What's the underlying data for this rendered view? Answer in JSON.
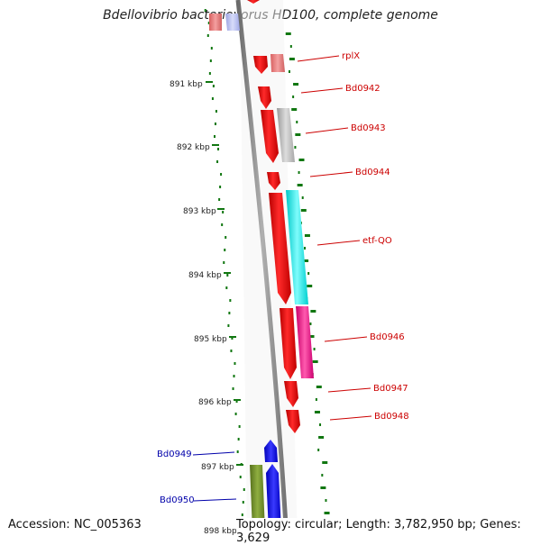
{
  "title": "Bdellovibrio bacteriovorus HD100, complete genome",
  "accession": "Accession: NC_005363",
  "topology": "Topology: circular; Length: 3,782,950 bp; Genes: 3,629",
  "ticks": [
    "891 kbp",
    "892 kbp",
    "893 kbp",
    "894 kbp",
    "895 kbp",
    "896 kbp",
    "897 kbp",
    "898 kbp"
  ],
  "genes_right": [
    {
      "name": "rplX",
      "color": "#cc0000"
    },
    {
      "name": "Bd0942",
      "color": "#cc0000"
    },
    {
      "name": "Bd0943",
      "color": "#cc0000"
    },
    {
      "name": "Bd0944",
      "color": "#cc0000"
    },
    {
      "name": "etf-QO",
      "color": "#cc0000"
    },
    {
      "name": "Bd0946",
      "color": "#cc0000"
    },
    {
      "name": "Bd0947",
      "color": "#cc0000"
    },
    {
      "name": "Bd0948",
      "color": "#cc0000"
    }
  ],
  "genes_left": [
    {
      "name": "Bd0949",
      "color": "#0000aa"
    },
    {
      "name": "Bd0950",
      "color": "#0000aa"
    }
  ],
  "colors": {
    "backbone": "#888888",
    "forward_gene": "#ee0000",
    "reverse_gene": "#0000ee",
    "gc_dots": "#117711",
    "cog_grey": "#bbbbbb",
    "cog_cyan": "#00e5e5",
    "cog_magenta": "#ee1188",
    "cog_olive": "#6e8b2a",
    "cog_pink": "#e88080",
    "cog_lightblue": "#b8c0f0"
  }
}
